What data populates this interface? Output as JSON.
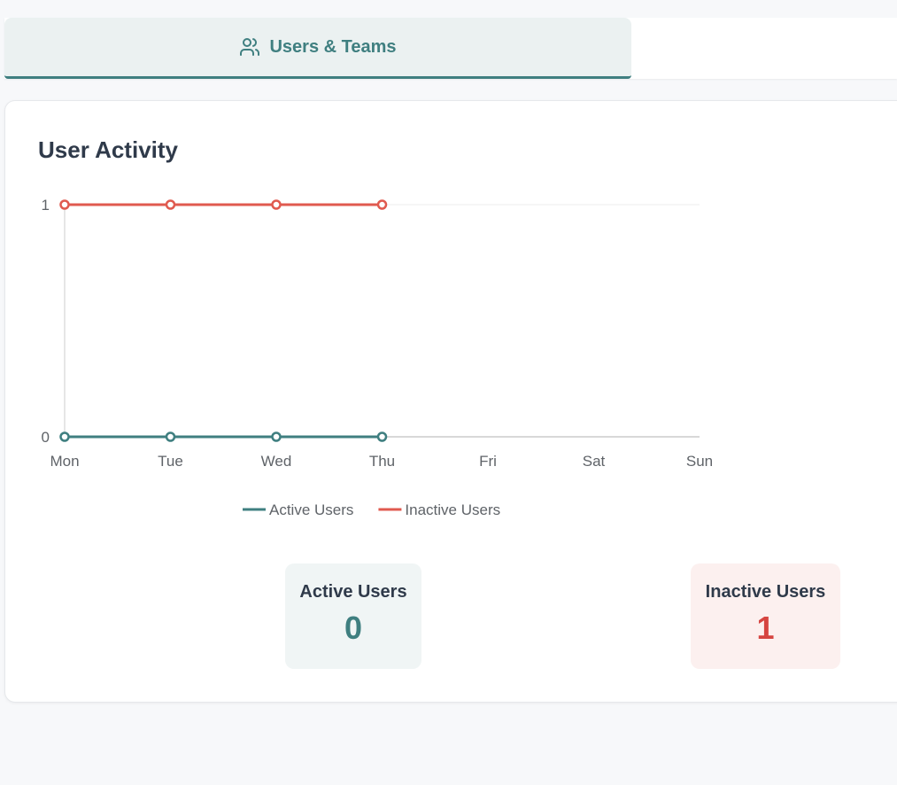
{
  "tabs": [
    {
      "label": "Users & Teams",
      "icon": "users-icon",
      "active": true
    }
  ],
  "colors": {
    "accent": "#3f7f80",
    "active_series": "#3f7f80",
    "inactive_series": "#e05a4f",
    "inactive_value": "#d64541"
  },
  "activity": {
    "title": "User Activity"
  },
  "chart_data": {
    "type": "line",
    "categories": [
      "Mon",
      "Tue",
      "Wed",
      "Thu",
      "Fri",
      "Sat",
      "Sun"
    ],
    "series": [
      {
        "name": "Active Users",
        "values": [
          0,
          0,
          0,
          0,
          null,
          null,
          null
        ]
      },
      {
        "name": "Inactive Users",
        "values": [
          1,
          1,
          1,
          1,
          null,
          null,
          null
        ]
      }
    ],
    "y_ticks": [
      "0",
      "1"
    ],
    "ylim": [
      0,
      1
    ],
    "grid": "horizontal",
    "legend_position": "bottom"
  },
  "stats": {
    "active": {
      "label": "Active Users",
      "value": "0"
    },
    "inactive": {
      "label": "Inactive Users",
      "value": "1"
    }
  }
}
